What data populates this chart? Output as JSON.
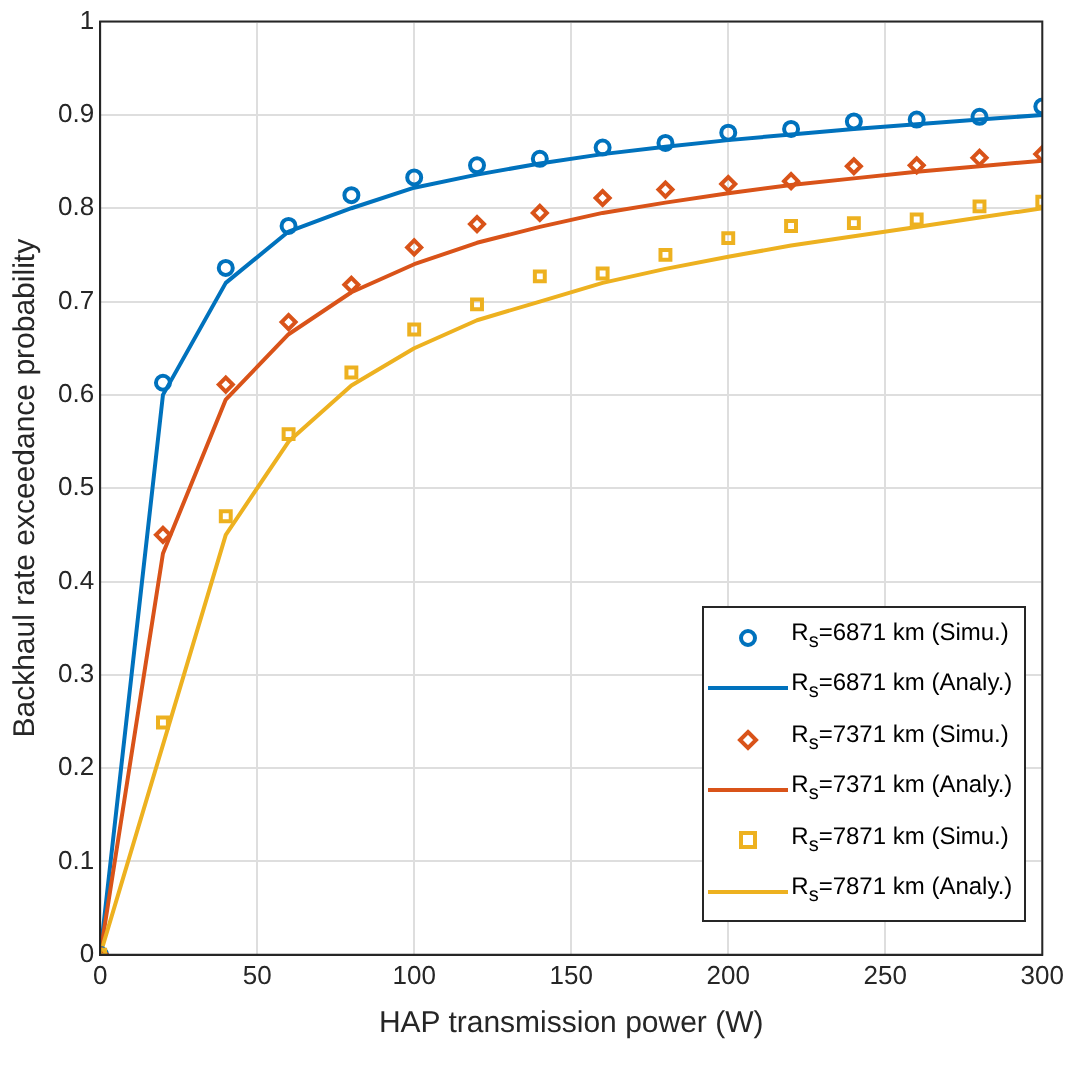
{
  "chart_data": {
    "type": "line",
    "xlabel": "HAP transmission power (W)",
    "ylabel": "Backhaul rate exceedance probability",
    "x": [
      0,
      20,
      40,
      60,
      80,
      100,
      120,
      140,
      160,
      180,
      200,
      220,
      240,
      260,
      280,
      300
    ],
    "xlim": [
      0,
      300
    ],
    "xticks": [
      0,
      50,
      100,
      150,
      200,
      250,
      300
    ],
    "ylim": [
      0,
      1
    ],
    "yticks": [
      0,
      0.1,
      0.2,
      0.3,
      0.4,
      0.5,
      0.6,
      0.7,
      0.8,
      0.9,
      1
    ],
    "grid": true,
    "legend": "bottom right",
    "series": [
      {
        "name": "R$_{s}$=6871 km (Simu.)",
        "type": "scatter",
        "marker": "circle",
        "color": "#0072bd",
        "values": [
          0,
          0.613,
          0.736,
          0.781,
          0.814,
          0.833,
          0.846,
          0.853,
          0.865,
          0.87,
          0.881,
          0.885,
          0.893,
          0.895,
          0.898,
          0.909
        ]
      },
      {
        "name": "R$_{s}$=6871 km (Analy.)",
        "type": "line",
        "marker": "none",
        "color": "#0072bd",
        "values": [
          0,
          0.6,
          0.72,
          0.775,
          0.8,
          0.822,
          0.836,
          0.848,
          0.858,
          0.866,
          0.873,
          0.879,
          0.885,
          0.89,
          0.895,
          0.9
        ]
      },
      {
        "name": "R$_{s}$=7371 km (Simu.)",
        "type": "scatter",
        "marker": "diamond",
        "color": "#d95319",
        "values": [
          0,
          0.45,
          0.611,
          0.678,
          0.718,
          0.758,
          0.783,
          0.795,
          0.811,
          0.82,
          0.826,
          0.829,
          0.845,
          0.846,
          0.854,
          0.858
        ]
      },
      {
        "name": "R$_{s}$=7371 km (Analy.)",
        "type": "line",
        "marker": "none",
        "color": "#d95319",
        "values": [
          0,
          0.43,
          0.595,
          0.665,
          0.71,
          0.74,
          0.763,
          0.78,
          0.795,
          0.806,
          0.816,
          0.825,
          0.832,
          0.839,
          0.845,
          0.851
        ]
      },
      {
        "name": "R$_{s}$=7871 km (Simu.)",
        "type": "scatter",
        "marker": "square",
        "color": "#edb120",
        "values": [
          0,
          0.249,
          0.47,
          0.558,
          0.624,
          0.67,
          0.697,
          0.727,
          0.73,
          0.75,
          0.768,
          0.781,
          0.784,
          0.788,
          0.802,
          0.807
        ]
      },
      {
        "name": "R$_{s}$=7871 km (Analy.)",
        "type": "line",
        "marker": "none",
        "color": "#edb120",
        "values": [
          0,
          0.225,
          0.45,
          0.55,
          0.61,
          0.65,
          0.68,
          0.7,
          0.72,
          0.735,
          0.748,
          0.76,
          0.77,
          0.78,
          0.79,
          0.8
        ]
      }
    ]
  }
}
